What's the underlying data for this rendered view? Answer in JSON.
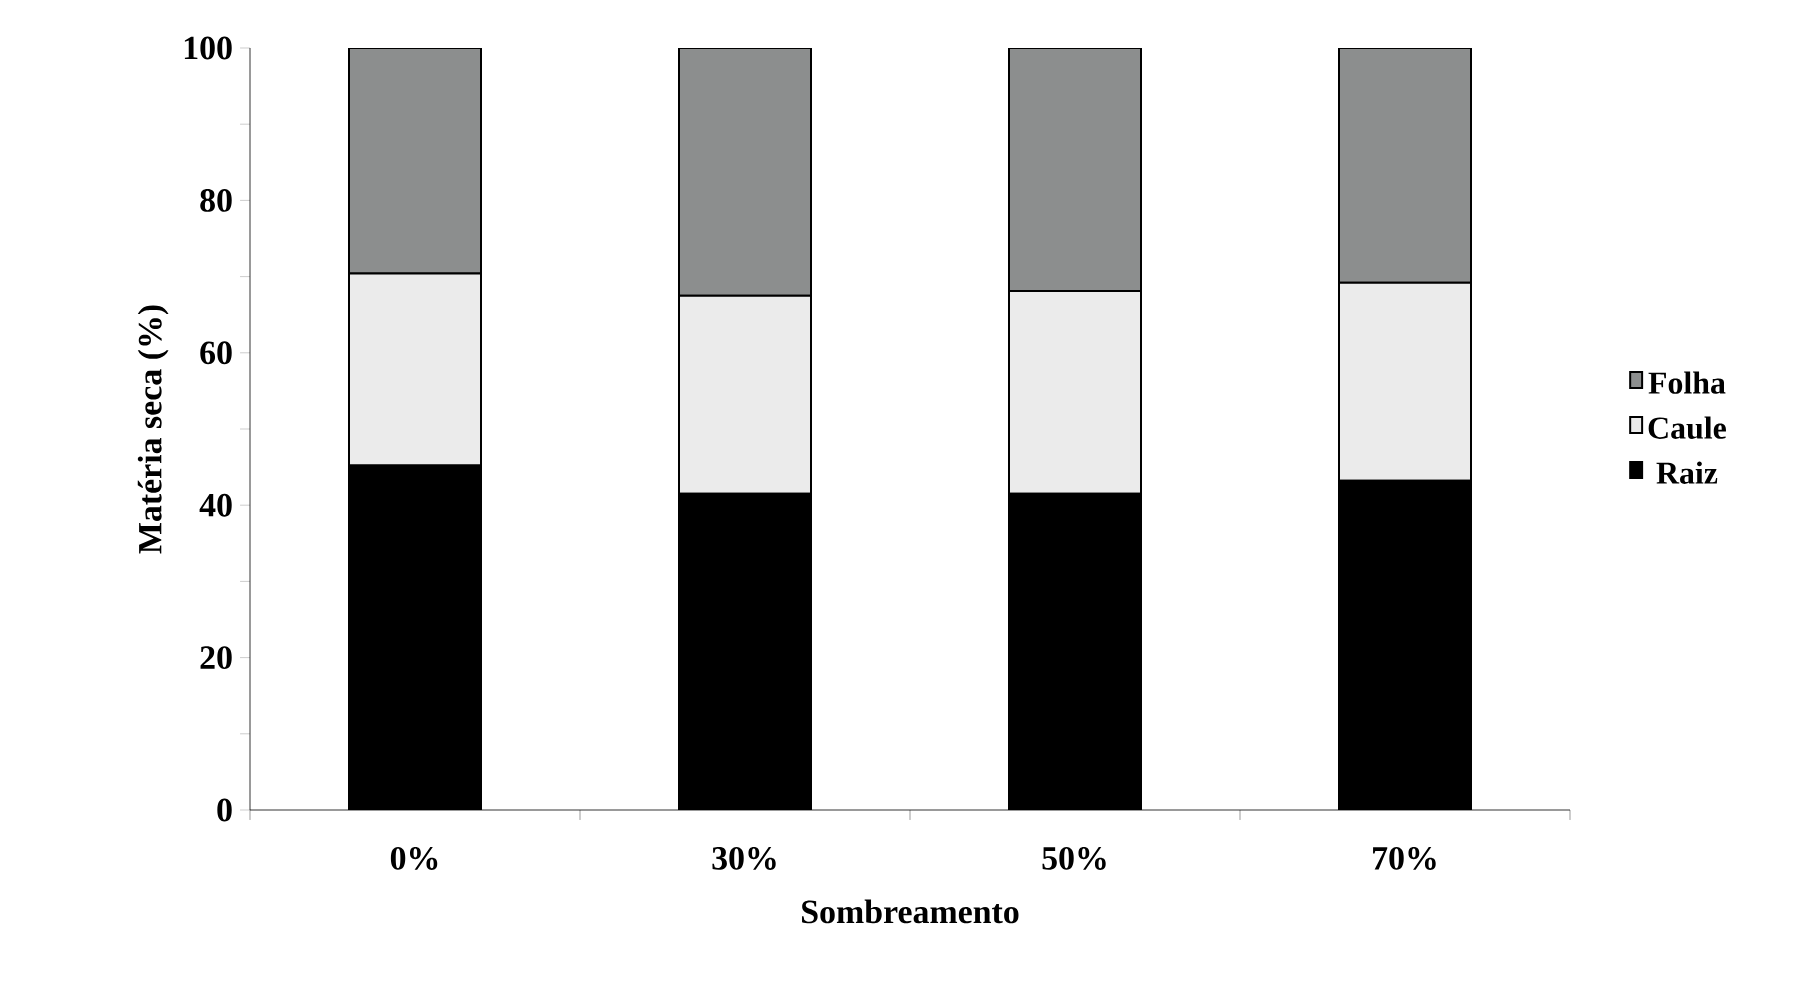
{
  "chart_data": {
    "type": "bar",
    "stacked": true,
    "xlabel": "Sombreamento",
    "ylabel": "Matéria seca (%)",
    "categories": [
      "0%",
      "30%",
      "50%",
      "70%"
    ],
    "series": [
      {
        "name": "Raiz",
        "color": "#000000",
        "values": [
          45.2,
          41.5,
          41.5,
          43.2
        ]
      },
      {
        "name": "Caule",
        "color": "#ebebeb",
        "values": [
          25.2,
          26.0,
          26.6,
          26.0
        ]
      },
      {
        "name": "Folha",
        "color": "#8c8e8e",
        "values": [
          29.6,
          32.5,
          31.9,
          30.8
        ]
      }
    ],
    "ylim": [
      0,
      100
    ],
    "yticks": [
      0,
      {
        "value": 10,
        "label": null
      },
      20,
      {
        "value": 30,
        "label": null
      },
      40,
      {
        "value": 50,
        "label": null
      },
      60,
      {
        "value": 70,
        "label": null
      },
      80,
      {
        "value": 90,
        "label": null
      },
      100
    ],
    "legend": "right",
    "grid": false
  }
}
